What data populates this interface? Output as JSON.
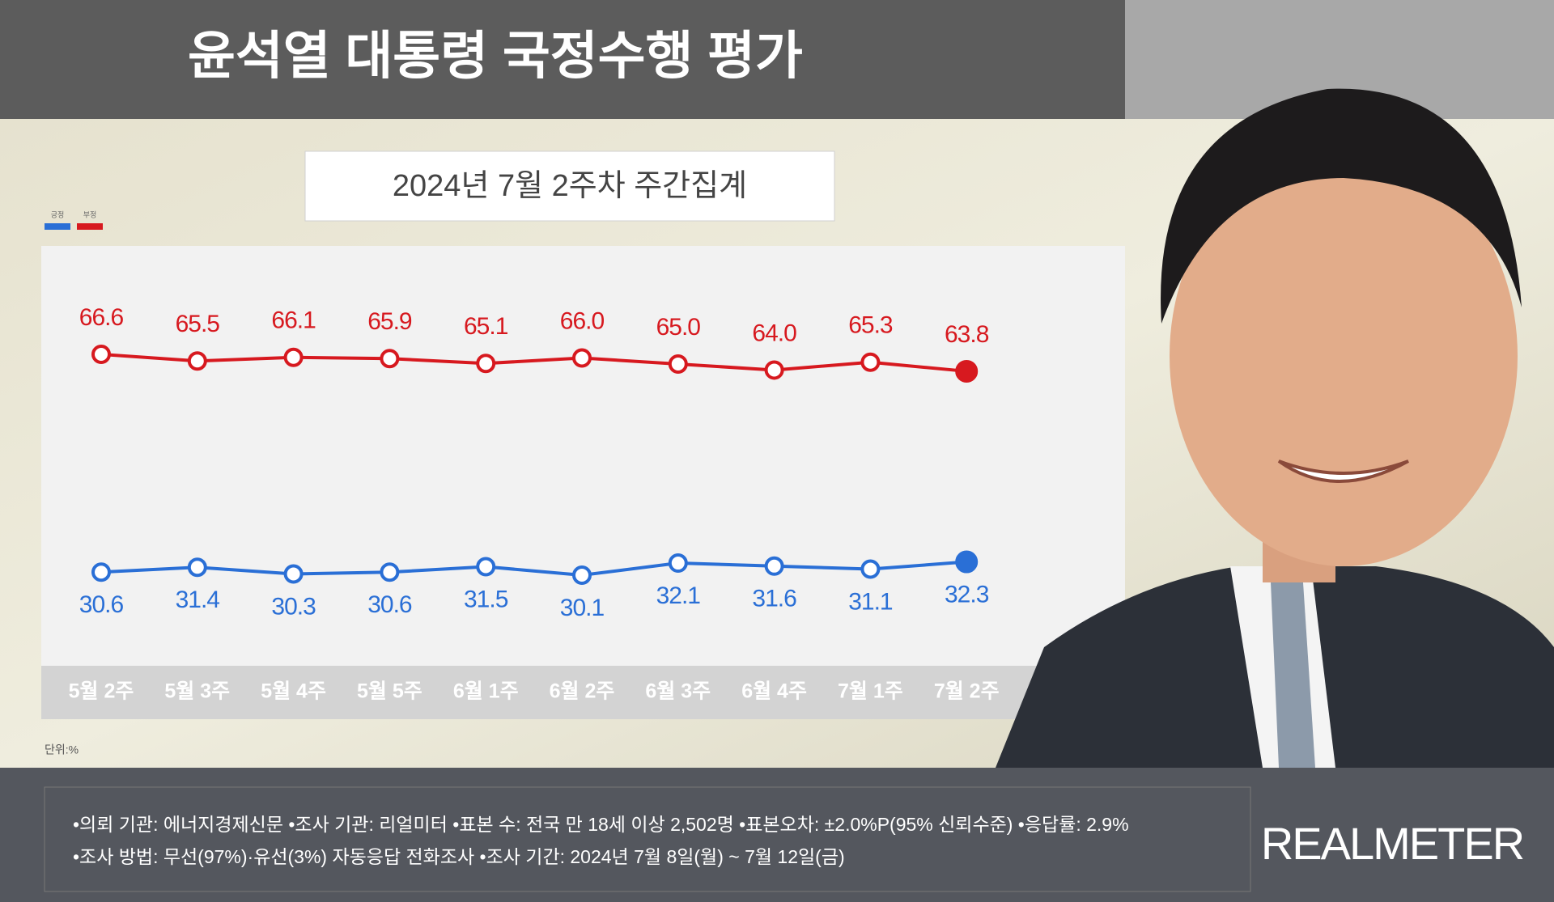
{
  "chart_data": {
    "type": "line",
    "title": "윤석열 대통령 국정수행 평가",
    "subtitle": "2024년 7월 2주차 주간집계",
    "categories": [
      "5월 2주",
      "5월 3주",
      "5월 4주",
      "5월 5주",
      "6월 1주",
      "6월 2주",
      "6월 3주",
      "6월 4주",
      "7월 1주",
      "7월 2주"
    ],
    "series": [
      {
        "name": "긍정",
        "color": "#2a6fd6",
        "values": [
          30.6,
          31.4,
          30.3,
          30.6,
          31.5,
          30.1,
          32.1,
          31.6,
          31.1,
          32.3
        ],
        "value_labels": [
          "30.6",
          "31.4",
          "30.3",
          "30.6",
          "31.5",
          "30.1",
          "32.1",
          "31.6",
          "31.1",
          "32.3"
        ]
      },
      {
        "name": "부정",
        "color": "#d7191f",
        "values": [
          66.6,
          65.5,
          66.1,
          65.9,
          65.1,
          66.0,
          65.0,
          64.0,
          65.3,
          63.8
        ],
        "value_labels": [
          "66.6",
          "65.5",
          "66.1",
          "65.9",
          "65.1",
          "66.0",
          "65.0",
          "64.0",
          "65.3",
          "63.8"
        ]
      }
    ],
    "unit_label": "단위:%"
  },
  "notes": [
    "•의뢰 기관: 에너지경제신문 •조사 기관: 리얼미터 •표본 수: 전국 만 18세 이상 2,502명 •표본오차: ±2.0%P(95% 신뢰수준) •응답률: 2.9%",
    "•조사 방법: 무선(97%)·유선(3%) 자동응답 전화조사 •조사 기간: 2024년 7월 8일(월) ~ 7월 12일(금)"
  ],
  "brand": "REALMETER"
}
